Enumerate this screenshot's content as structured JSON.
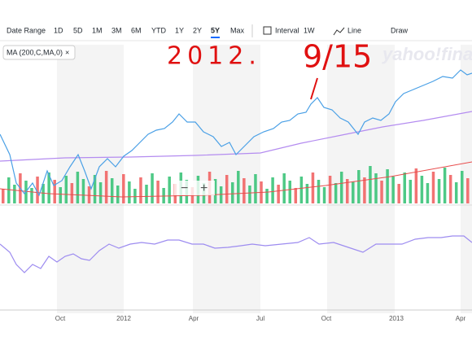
{
  "toolbar": {
    "date_range": "Date Range",
    "ranges": [
      "1D",
      "5D",
      "1M",
      "3M",
      "6M",
      "YTD",
      "1Y",
      "2Y",
      "5Y",
      "Max"
    ],
    "active": "5Y",
    "interval": "Interval",
    "interval_value": "1W",
    "line": "Line",
    "draw": "Draw"
  },
  "indicator": {
    "label": "MA (200,C,MA,0)",
    "close": "×"
  },
  "watermark": "yahoo!finance",
  "zoom": {
    "minus": "−",
    "plus": "+"
  },
  "x_labels": [
    "Oct",
    "2012",
    "Apr",
    "Jul",
    "Oct",
    "2013",
    "Apr"
  ],
  "annotations": [
    "2012.",
    "9/15"
  ]
}
